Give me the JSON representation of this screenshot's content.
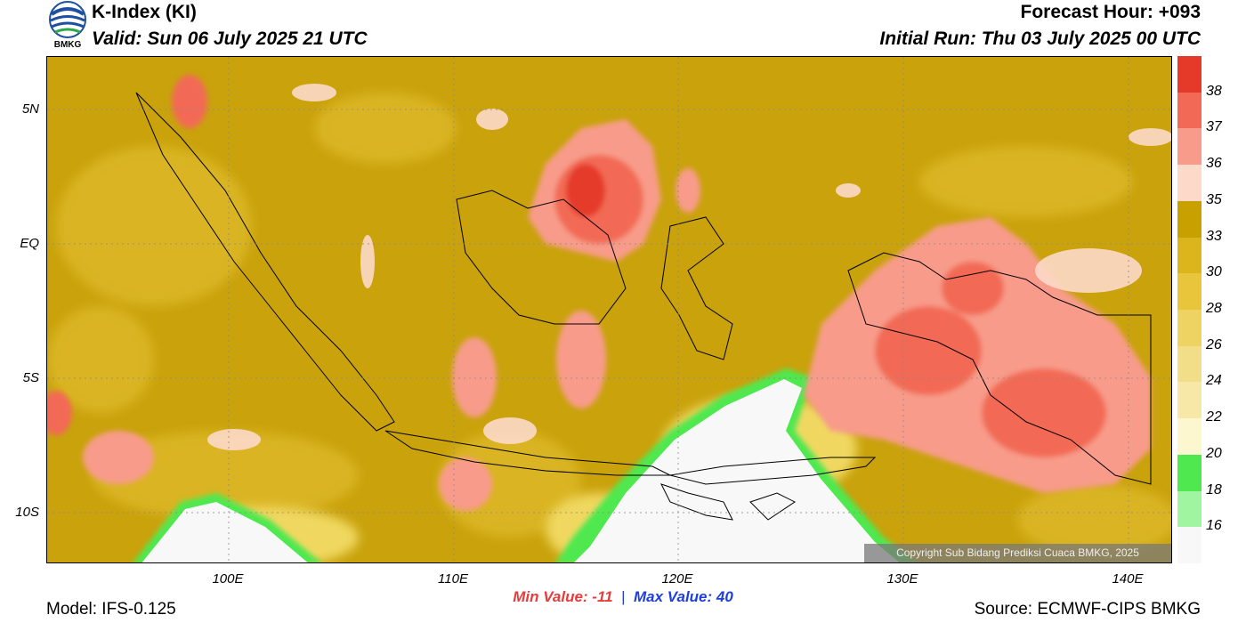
{
  "header": {
    "title": "K-Index (KI)",
    "valid": "Valid: Sun 06 July 2025 21 UTC",
    "forecast_hour": "Forecast Hour: +093",
    "initial_run": "Initial Run: Thu 03 July 2025 00 UTC"
  },
  "logo": {
    "text": "BMKG",
    "icon": "bmkg-logo-icon"
  },
  "map": {
    "region": "Indonesia",
    "lat_labels": [
      "5N",
      "EQ",
      "5S",
      "10S"
    ],
    "lon_labels": [
      "100E",
      "110E",
      "120E",
      "130E",
      "140E"
    ],
    "copyright": "Copyright Sub Bidang Prediksi Cuaca BMKG, 2025"
  },
  "colorbar": {
    "labels": [
      "38",
      "37",
      "36",
      "35",
      "33",
      "30",
      "28",
      "26",
      "24",
      "22",
      "20",
      "18",
      "16"
    ],
    "colors": [
      "#e53a2a",
      "#f26a55",
      "#f89b8a",
      "#fcd9c8",
      "#c8a000",
      "#dcb41c",
      "#e8c53a",
      "#eed262",
      "#f2dd88",
      "#f7e8a8",
      "#fdf7d0",
      "#4fe84f",
      "#a0f5a0",
      "#f8f8f8"
    ]
  },
  "stats": {
    "min_label": "Min Value: -11",
    "separator": "|",
    "max_label": "Max Value:  40"
  },
  "footer": {
    "model": "Model: IFS-0.125",
    "source": "Source: ECMWF-CIPS BMKG"
  }
}
